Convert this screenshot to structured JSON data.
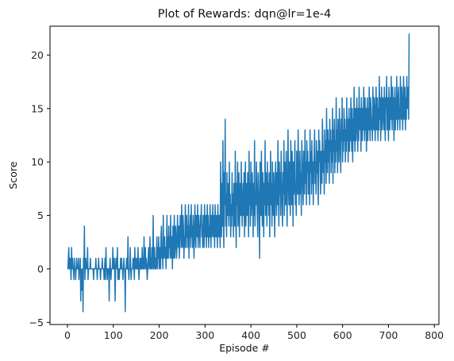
{
  "chart_data": {
    "type": "line",
    "title": "Plot of Rewards: dqn@lr=1e-4",
    "xlabel": "Episode #",
    "ylabel": "Score",
    "xlim": [
      -38,
      810
    ],
    "ylim": [
      -5.2,
      22.7
    ],
    "x_ticks": [
      0,
      100,
      200,
      300,
      400,
      500,
      600,
      700,
      800
    ],
    "y_ticks": [
      -5,
      0,
      5,
      10,
      15,
      20
    ],
    "grid": false,
    "legend": "none",
    "series": [
      {
        "color": "#1f77b4",
        "x_start": 0,
        "x_step": 1,
        "values": [
          0,
          0,
          1,
          2,
          0,
          0,
          1,
          0,
          -1,
          2,
          0,
          1,
          0,
          0,
          -1,
          1,
          0,
          0,
          -1,
          0,
          1,
          0,
          0,
          0,
          1,
          -1,
          0,
          0,
          1,
          -3,
          0,
          -2,
          -1,
          0,
          -4,
          1,
          0,
          4,
          -1,
          0,
          1,
          0,
          0,
          0,
          2,
          -1,
          0,
          0,
          0,
          0,
          1,
          0,
          0,
          0,
          0,
          0,
          0,
          -1,
          0,
          0,
          0,
          0,
          1,
          0,
          0,
          -1,
          0,
          0,
          1,
          0,
          0,
          0,
          -1,
          0,
          0,
          0,
          1,
          0,
          0,
          0,
          -1,
          0,
          1,
          -1,
          2,
          0,
          0,
          -1,
          0,
          0,
          0,
          -3,
          0,
          1,
          0,
          -1,
          0,
          0,
          0,
          2,
          0,
          0,
          1,
          0,
          -3,
          0,
          1,
          1,
          0,
          2,
          -1,
          0,
          0,
          -1,
          0,
          0,
          1,
          0,
          1,
          0,
          0,
          -1,
          0,
          1,
          0,
          0,
          -4,
          0,
          0,
          1,
          0,
          0,
          3,
          0,
          -1,
          0,
          0,
          2,
          0,
          -1,
          0,
          0,
          0,
          1,
          1,
          0,
          -1,
          2,
          0,
          1,
          0,
          0,
          1,
          0,
          2,
          0,
          -1,
          0,
          1,
          0,
          1,
          0,
          0,
          2,
          0,
          1,
          0,
          3,
          0,
          1,
          2,
          0,
          1,
          0,
          -1,
          0,
          1,
          2,
          0,
          1,
          3,
          0,
          1,
          0,
          2,
          0,
          1,
          5,
          0,
          1,
          2,
          0,
          1,
          0,
          1,
          3,
          0,
          2,
          1,
          3,
          0,
          1,
          2,
          0,
          3,
          4,
          1,
          2,
          0,
          5,
          1,
          2,
          3,
          1,
          2,
          0,
          2,
          5,
          1,
          3,
          1,
          4,
          2,
          3,
          1,
          5,
          2,
          1,
          3,
          0,
          4,
          1,
          2,
          5,
          1,
          2,
          4,
          3,
          1,
          2,
          5,
          3,
          2,
          4,
          1,
          3,
          5,
          4,
          2,
          6,
          3,
          2,
          5,
          4,
          1,
          3,
          2,
          6,
          4,
          2,
          5,
          3,
          4,
          2,
          6,
          1,
          4,
          3,
          5,
          2,
          6,
          3,
          4,
          2,
          5,
          3,
          1,
          4,
          6,
          3,
          2,
          5,
          4,
          3,
          6,
          2,
          5,
          4,
          3,
          2,
          5,
          4,
          6,
          3,
          4,
          2,
          5,
          3,
          2,
          6,
          4,
          3,
          5,
          2,
          4,
          6,
          3,
          5,
          2,
          4,
          3,
          6,
          4,
          2,
          5,
          3,
          4,
          6,
          3,
          5,
          4,
          2,
          6,
          4,
          3,
          5,
          4,
          2,
          6,
          4,
          3,
          5,
          4,
          2,
          10,
          6,
          3,
          8,
          4,
          12,
          5,
          2,
          9,
          6,
          14,
          4,
          7,
          3,
          9,
          5,
          8,
          6,
          4,
          10,
          5,
          7,
          3,
          6,
          4,
          9,
          5,
          7,
          3,
          8,
          6,
          4,
          11,
          5,
          2,
          8,
          6,
          10,
          4,
          7,
          9,
          3,
          6,
          8,
          5,
          10,
          7,
          4,
          6,
          8,
          5,
          9,
          3,
          7,
          10,
          4,
          6,
          8,
          5,
          9,
          7,
          3,
          11,
          6,
          8,
          4,
          10,
          5,
          7,
          9,
          6,
          3,
          8,
          5,
          12,
          4,
          7,
          6,
          10,
          8,
          5,
          3,
          9,
          7,
          6,
          1,
          10,
          8,
          5,
          11,
          6,
          4,
          9,
          7,
          3,
          8,
          6,
          12,
          5,
          9,
          7,
          4,
          10,
          6,
          8,
          5,
          9,
          3,
          7,
          11,
          6,
          8,
          4,
          10,
          7,
          5,
          9,
          6,
          3,
          8,
          10,
          7,
          5,
          9,
          6,
          12,
          8,
          4,
          10,
          7,
          9,
          5,
          11,
          8,
          6,
          4,
          9,
          7,
          12,
          5,
          10,
          8,
          6,
          11,
          7,
          4,
          9,
          13,
          8,
          6,
          10,
          7,
          5,
          12,
          9,
          6,
          11,
          8,
          4,
          10,
          7,
          9,
          12,
          6,
          8,
          5,
          11,
          9,
          7,
          13,
          10,
          6,
          8,
          11,
          7,
          9,
          5,
          12,
          10,
          8,
          6,
          11,
          9,
          7,
          13,
          8,
          10,
          6,
          12,
          9,
          11,
          7,
          8,
          10,
          6,
          13,
          9,
          11,
          7,
          12,
          8,
          10,
          6,
          9,
          11,
          13,
          8,
          10,
          7,
          12,
          9,
          11,
          8,
          6,
          13,
          10,
          12,
          9,
          7,
          11,
          10,
          8,
          14,
          12,
          9,
          11,
          7,
          13,
          10,
          12,
          8,
          15,
          11,
          9,
          13,
          10,
          12,
          8,
          14,
          11,
          13,
          9,
          12,
          10,
          15,
          8,
          13,
          11,
          14,
          9,
          12,
          10,
          16,
          11,
          13,
          9,
          14,
          12,
          10,
          15,
          13,
          11,
          9,
          14,
          12,
          16,
          10,
          13,
          11,
          15,
          12,
          14,
          10,
          13,
          11,
          16,
          12,
          14,
          10,
          13,
          15,
          11,
          14,
          12,
          16,
          13,
          11,
          15,
          10,
          14,
          12,
          17,
          13,
          11,
          15,
          12,
          14,
          16,
          13,
          11,
          15,
          12,
          17,
          14,
          13,
          15,
          11,
          16,
          14,
          12,
          15,
          13,
          17,
          14,
          12,
          16,
          13,
          15,
          11,
          14,
          16,
          12,
          15,
          13,
          17,
          14,
          12,
          16,
          15,
          13,
          14,
          12,
          17,
          15,
          13,
          16,
          14,
          12,
          15,
          17,
          13,
          14,
          16,
          12,
          15,
          13,
          18,
          14,
          16,
          12,
          15,
          17,
          13,
          14,
          16,
          15,
          13,
          17,
          14,
          12,
          16,
          15,
          18,
          13,
          14,
          16,
          12,
          17,
          15,
          13,
          16,
          14,
          18,
          15,
          13,
          17,
          14,
          16,
          12,
          15,
          17,
          13,
          16,
          14,
          18,
          15,
          13,
          16,
          17,
          14,
          15,
          13,
          18,
          16,
          14,
          17,
          15,
          13,
          16,
          18,
          14,
          15,
          17,
          13,
          16,
          14,
          18,
          15,
          16,
          17,
          14,
          22
        ]
      }
    ]
  }
}
